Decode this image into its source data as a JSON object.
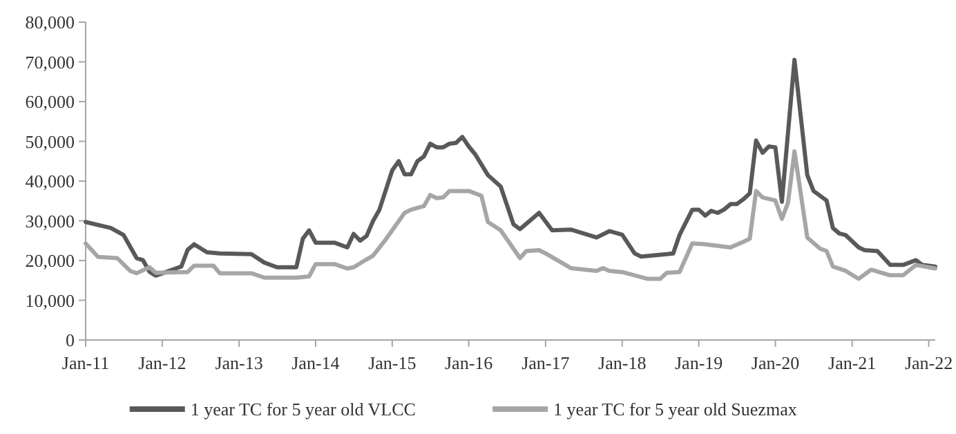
{
  "chart_data": {
    "type": "line",
    "legend": "bottom",
    "grid": false,
    "marker": "none",
    "line_style": "solid",
    "xlim": [
      "2011-01",
      "2022-02"
    ],
    "xticks": [
      {
        "value": "2011-01",
        "label": "Jan-11"
      },
      {
        "value": "2012-01",
        "label": "Jan-12"
      },
      {
        "value": "2013-01",
        "label": "Jan-13"
      },
      {
        "value": "2014-01",
        "label": "Jan-14"
      },
      {
        "value": "2015-01",
        "label": "Jan-15"
      },
      {
        "value": "2016-01",
        "label": "Jan-16"
      },
      {
        "value": "2017-01",
        "label": "Jan-17"
      },
      {
        "value": "2018-01",
        "label": "Jan-18"
      },
      {
        "value": "2019-01",
        "label": "Jan-19"
      },
      {
        "value": "2020-01",
        "label": "Jan-20"
      },
      {
        "value": "2021-01",
        "label": "Jan-21"
      },
      {
        "value": "2022-01",
        "label": "Jan-22"
      }
    ],
    "ylim": [
      0,
      80000
    ],
    "yticks": [
      {
        "value": 0,
        "label": "0"
      },
      {
        "value": 10000,
        "label": "10,000"
      },
      {
        "value": 20000,
        "label": "20,000"
      },
      {
        "value": 30000,
        "label": "30,000"
      },
      {
        "value": 40000,
        "label": "40,000"
      },
      {
        "value": 50000,
        "label": "50,000"
      },
      {
        "value": 60000,
        "label": "60,000"
      },
      {
        "value": 70000,
        "label": "70,000"
      },
      {
        "value": 80000,
        "label": "80,000"
      }
    ],
    "series": [
      {
        "name": "1 year TC for 5 year old VLCC",
        "color": "#595959",
        "x": [
          "2011-01",
          "2011-05",
          "2011-07",
          "2011-09",
          "2011-10",
          "2011-11",
          "2011-12",
          "2012-04",
          "2012-05",
          "2012-06",
          "2012-08",
          "2012-10",
          "2013-03",
          "2013-05",
          "2013-07",
          "2013-10",
          "2013-11",
          "2013-12",
          "2014-01",
          "2014-04",
          "2014-06",
          "2014-07",
          "2014-08",
          "2014-09",
          "2014-10",
          "2014-11",
          "2015-01",
          "2015-02",
          "2015-03",
          "2015-04",
          "2015-05",
          "2015-06",
          "2015-07",
          "2015-08",
          "2015-09",
          "2015-10",
          "2015-11",
          "2015-12",
          "2016-01",
          "2016-02",
          "2016-04",
          "2016-06",
          "2016-08",
          "2016-09",
          "2016-12",
          "2017-02",
          "2017-05",
          "2017-09",
          "2017-11",
          "2018-01",
          "2018-03",
          "2018-04",
          "2018-08",
          "2018-09",
          "2018-10",
          "2018-12",
          "2019-01",
          "2019-02",
          "2019-03",
          "2019-04",
          "2019-05",
          "2019-06",
          "2019-07",
          "2019-08",
          "2019-09",
          "2019-10",
          "2019-11",
          "2019-12",
          "2020-01",
          "2020-02",
          "2020-04",
          "2020-06",
          "2020-07",
          "2020-09",
          "2020-10",
          "2020-11",
          "2020-12",
          "2021-02",
          "2021-03",
          "2021-05",
          "2021-07",
          "2021-09",
          "2021-11",
          "2021-12",
          "2022-02"
        ],
        "values": [
          29700,
          28200,
          26400,
          20600,
          20100,
          17200,
          16200,
          18500,
          22700,
          24100,
          22100,
          21800,
          21600,
          19500,
          18300,
          18300,
          25500,
          27600,
          24500,
          24500,
          23300,
          26700,
          25000,
          26200,
          29900,
          32800,
          42700,
          45000,
          41700,
          41700,
          45000,
          46200,
          49400,
          48500,
          48500,
          49400,
          49600,
          51100,
          48700,
          46700,
          41500,
          38600,
          29100,
          27900,
          32000,
          27600,
          27800,
          25800,
          27400,
          26500,
          21800,
          21000,
          21600,
          21800,
          26400,
          32800,
          32800,
          31300,
          32500,
          32000,
          32800,
          34200,
          34200,
          35400,
          36900,
          50200,
          47100,
          48700,
          48500,
          34800,
          70500,
          41500,
          37500,
          35100,
          28200,
          26800,
          26400,
          23300,
          22600,
          22400,
          18900,
          18900,
          20100,
          18900,
          18500
        ]
      },
      {
        "name": "1 year TC for 5 year old Suezmax",
        "color": "#a6a6a6",
        "x": [
          "2011-01",
          "2011-03",
          "2011-06",
          "2011-08",
          "2011-09",
          "2011-11",
          "2011-12",
          "2012-05",
          "2012-06",
          "2012-09",
          "2012-10",
          "2013-03",
          "2013-05",
          "2013-10",
          "2013-12",
          "2014-01",
          "2014-04",
          "2014-06",
          "2014-07",
          "2014-09",
          "2014-10",
          "2014-12",
          "2015-03",
          "2015-04",
          "2015-06",
          "2015-07",
          "2015-08",
          "2015-09",
          "2015-10",
          "2016-01",
          "2016-03",
          "2016-04",
          "2016-06",
          "2016-09",
          "2016-10",
          "2016-12",
          "2017-01",
          "2017-05",
          "2017-09",
          "2017-10",
          "2017-11",
          "2018-01",
          "2018-05",
          "2018-07",
          "2018-08",
          "2018-10",
          "2018-12",
          "2019-02",
          "2019-06",
          "2019-08",
          "2019-09",
          "2019-10",
          "2019-11",
          "2020-01",
          "2020-02",
          "2020-03",
          "2020-04",
          "2020-06",
          "2020-08",
          "2020-09",
          "2020-10",
          "2020-12",
          "2021-02",
          "2021-04",
          "2021-07",
          "2021-09",
          "2021-11",
          "2022-02"
        ],
        "values": [
          24300,
          20900,
          20600,
          17400,
          16800,
          18300,
          16900,
          17100,
          18700,
          18700,
          16800,
          16800,
          15700,
          15700,
          16000,
          19100,
          19100,
          18000,
          18300,
          20300,
          21200,
          25300,
          32000,
          32800,
          33700,
          36500,
          35700,
          35900,
          37500,
          37500,
          36300,
          29700,
          27600,
          20600,
          22400,
          22600,
          21800,
          18100,
          17400,
          18100,
          17400,
          17100,
          15400,
          15400,
          16900,
          17100,
          24300,
          24100,
          23300,
          24700,
          25500,
          37500,
          35900,
          35100,
          30500,
          34500,
          47500,
          25800,
          23000,
          22400,
          18500,
          17400,
          15400,
          17700,
          16300,
          16300,
          18900,
          18000
        ]
      }
    ]
  }
}
